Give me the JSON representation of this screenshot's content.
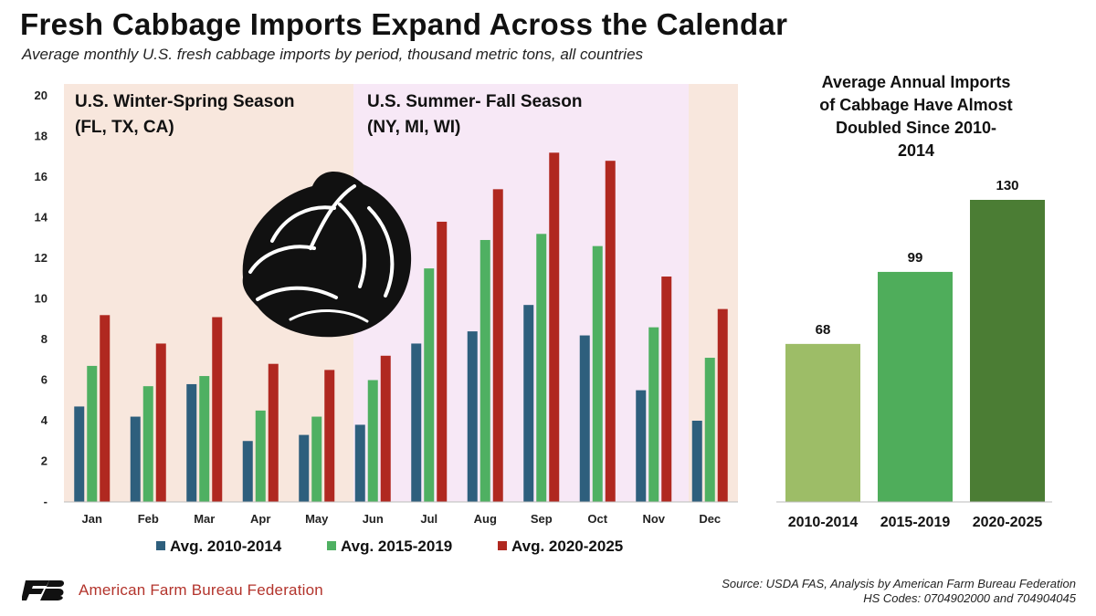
{
  "header": {
    "title": "Fresh Cabbage Imports Expand Across the Calendar",
    "subtitle": "Average monthly U.S. fresh cabbage imports by period, thousand metric tons, all countries"
  },
  "colors": {
    "series1": "#2e5f7d",
    "series2": "#4fb062",
    "series3": "#b02820",
    "season_winter": "#f8e7dd",
    "season_summer": "#f7e8f6",
    "right_bars": [
      "#9dbd67",
      "#4fad5b",
      "#4b7d34"
    ],
    "brand_red": "#b3342c"
  },
  "chart_data": [
    {
      "type": "bar",
      "categories": [
        "Jan",
        "Feb",
        "Mar",
        "Apr",
        "May",
        "Jun",
        "Jul",
        "Aug",
        "Sep",
        "Oct",
        "Nov",
        "Dec"
      ],
      "series": [
        {
          "name": "Avg. 2010-2014",
          "values": [
            4.7,
            4.2,
            5.8,
            3.0,
            3.3,
            3.8,
            7.8,
            8.4,
            9.7,
            8.2,
            5.5,
            4.0
          ]
        },
        {
          "name": "Avg. 2015-2019",
          "values": [
            6.7,
            5.7,
            6.2,
            4.5,
            4.2,
            6.0,
            11.5,
            12.9,
            13.2,
            12.6,
            8.6,
            7.1
          ]
        },
        {
          "name": "Avg. 2020-2025",
          "values": [
            9.2,
            7.8,
            9.1,
            6.8,
            6.5,
            7.2,
            13.8,
            15.4,
            17.2,
            16.8,
            11.1,
            9.5
          ]
        }
      ],
      "ylim": [
        0,
        20
      ],
      "yticks": [
        "-",
        "2",
        "4",
        "6",
        "8",
        "10",
        "12",
        "14",
        "16",
        "18",
        "20"
      ],
      "seasons": [
        {
          "label_line1": "U.S. Winter-Spring Season",
          "label_line2": "(FL, TX, CA)"
        },
        {
          "label_line1": "U.S. Summer- Fall Season",
          "label_line2": "(NY, MI, WI)"
        }
      ],
      "legend_position": "bottom",
      "grid": false
    },
    {
      "type": "bar",
      "title_lines": [
        "Average Annual Imports",
        "of Cabbage Have Almost",
        "Doubled Since 2010-",
        "2014"
      ],
      "categories": [
        "2010-2014",
        "2015-2019",
        "2020-2025"
      ],
      "values": [
        68,
        99,
        130
      ],
      "value_labels": [
        "68",
        "99",
        "130"
      ]
    }
  ],
  "footer": {
    "brand_name": "American Farm Bureau Federation",
    "source_line1": "Source: USDA FAS, Analysis by American Farm Bureau Federation",
    "source_line2": "HS Codes: 0704902000 and 704904045"
  },
  "icons": {
    "cabbage": "cabbage-icon",
    "brand_logo": "fb-logo-icon"
  }
}
